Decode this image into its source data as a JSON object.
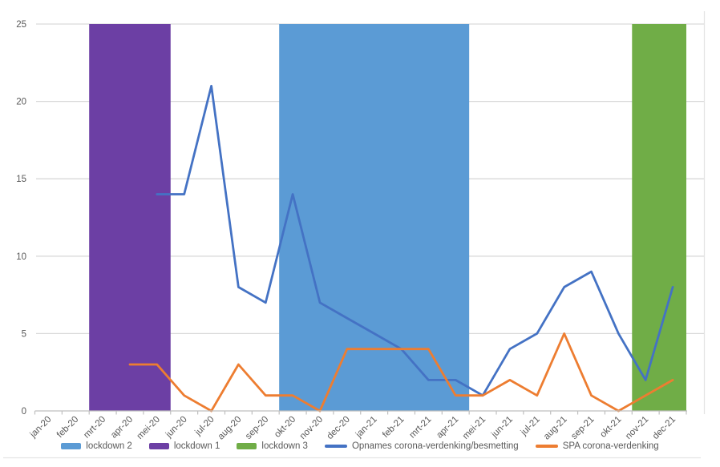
{
  "chart_data": {
    "type": "line",
    "title": "",
    "xlabel": "",
    "ylabel": "",
    "ylim": [
      0,
      25
    ],
    "yticks": [
      0,
      5,
      10,
      15,
      20,
      25
    ],
    "grid": true,
    "legend_position": "bottom",
    "categories": [
      "jan-20",
      "feb-20",
      "mrt-20",
      "apr-20",
      "mei-20",
      "jun-20",
      "jul-20",
      "aug-20",
      "sep-20",
      "okt-20",
      "nov-20",
      "dec-20",
      "jan-21",
      "feb-21",
      "mrt-21",
      "apr-21",
      "mei-21",
      "jun-21",
      "jul-21",
      "aug-21",
      "sep-21",
      "okt-21",
      "nov-21",
      "dec-21"
    ],
    "series": [
      {
        "name": "Opnames corona-verdenking/besmetting",
        "color": "#4472C4",
        "values": [
          null,
          null,
          null,
          null,
          14,
          14,
          21,
          8,
          7,
          14,
          7,
          6,
          5,
          4,
          2,
          2,
          1,
          4,
          5,
          8,
          9,
          5,
          2,
          8
        ]
      },
      {
        "name": "SPA corona-verdenking",
        "color": "#ED7D31",
        "values": [
          null,
          null,
          null,
          3,
          3,
          1,
          0,
          3,
          1,
          1,
          0,
          4,
          4,
          4,
          4,
          1,
          1,
          2,
          1,
          5,
          1,
          0,
          1,
          2
        ]
      }
    ],
    "bands": [
      {
        "label": "lockdown 1",
        "color": "#6C3FA4",
        "from": "mrt-20",
        "to": "mei-20"
      },
      {
        "label": "lockdown 2",
        "color": "#5B9BD5",
        "from": "okt-20",
        "to": "apr-21"
      },
      {
        "label": "lockdown 3",
        "color": "#70AD47",
        "from": "nov-21",
        "to": "dec-21"
      }
    ],
    "legend": [
      {
        "label": "lockdown 2",
        "marker": "bar",
        "color": "#5B9BD5"
      },
      {
        "label": "lockdown 1",
        "marker": "bar",
        "color": "#6C3FA4"
      },
      {
        "label": "lockdown 3",
        "marker": "bar",
        "color": "#70AD47"
      },
      {
        "label": "Opnames corona-verdenking/besmetting",
        "marker": "line",
        "color": "#4472C4"
      },
      {
        "label": "SPA corona-verdenking",
        "marker": "line",
        "color": "#ED7D31"
      }
    ]
  },
  "colors": {
    "grid": "#D9D9D9",
    "axis_line": "#BFBFBF",
    "axis_text": "#595959",
    "plot_border": "#E4E4E4",
    "background": "#FFFFFF"
  }
}
